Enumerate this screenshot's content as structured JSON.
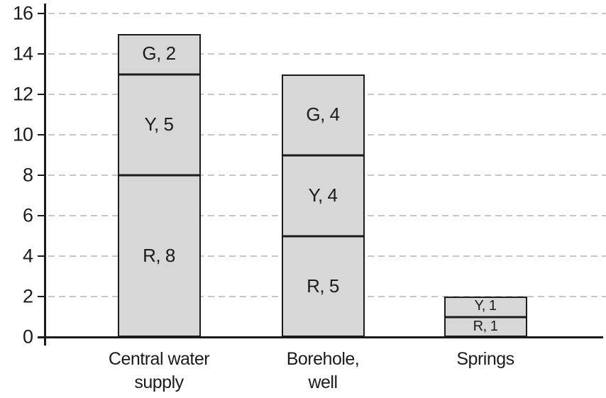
{
  "chart_data": {
    "type": "bar",
    "stacked": true,
    "title": "",
    "xlabel": "",
    "ylabel": "",
    "categories": [
      "Central water supply",
      "Borehole, well",
      "Springs"
    ],
    "category_label_lines": [
      [
        "Central water",
        "supply"
      ],
      [
        "Borehole,",
        "well"
      ],
      [
        "Springs"
      ]
    ],
    "series": [
      {
        "name": "R",
        "values": [
          8,
          5,
          1
        ]
      },
      {
        "name": "Y",
        "values": [
          5,
          4,
          1
        ]
      },
      {
        "name": "G",
        "values": [
          2,
          4,
          0
        ]
      }
    ],
    "segment_labels": [
      [
        "R, 8",
        "Y, 5",
        "G, 2"
      ],
      [
        "R, 5",
        "Y, 4",
        "G, 4"
      ],
      [
        "R, 1",
        "Y, 1"
      ]
    ],
    "totals": [
      15,
      13,
      2
    ],
    "ylim": [
      0,
      16
    ],
    "yticks": [
      0,
      2,
      4,
      6,
      8,
      10,
      12,
      14,
      16
    ],
    "grid": "horizontal-dashed",
    "legend": "none",
    "colors": {
      "bar_fill": "#d7d7d7",
      "bar_border": "#1b1b1b",
      "gridline": "#c7c7c7",
      "axis": "#1b1b1b",
      "text": "#1b1b1b",
      "background": "#ffffff"
    }
  }
}
